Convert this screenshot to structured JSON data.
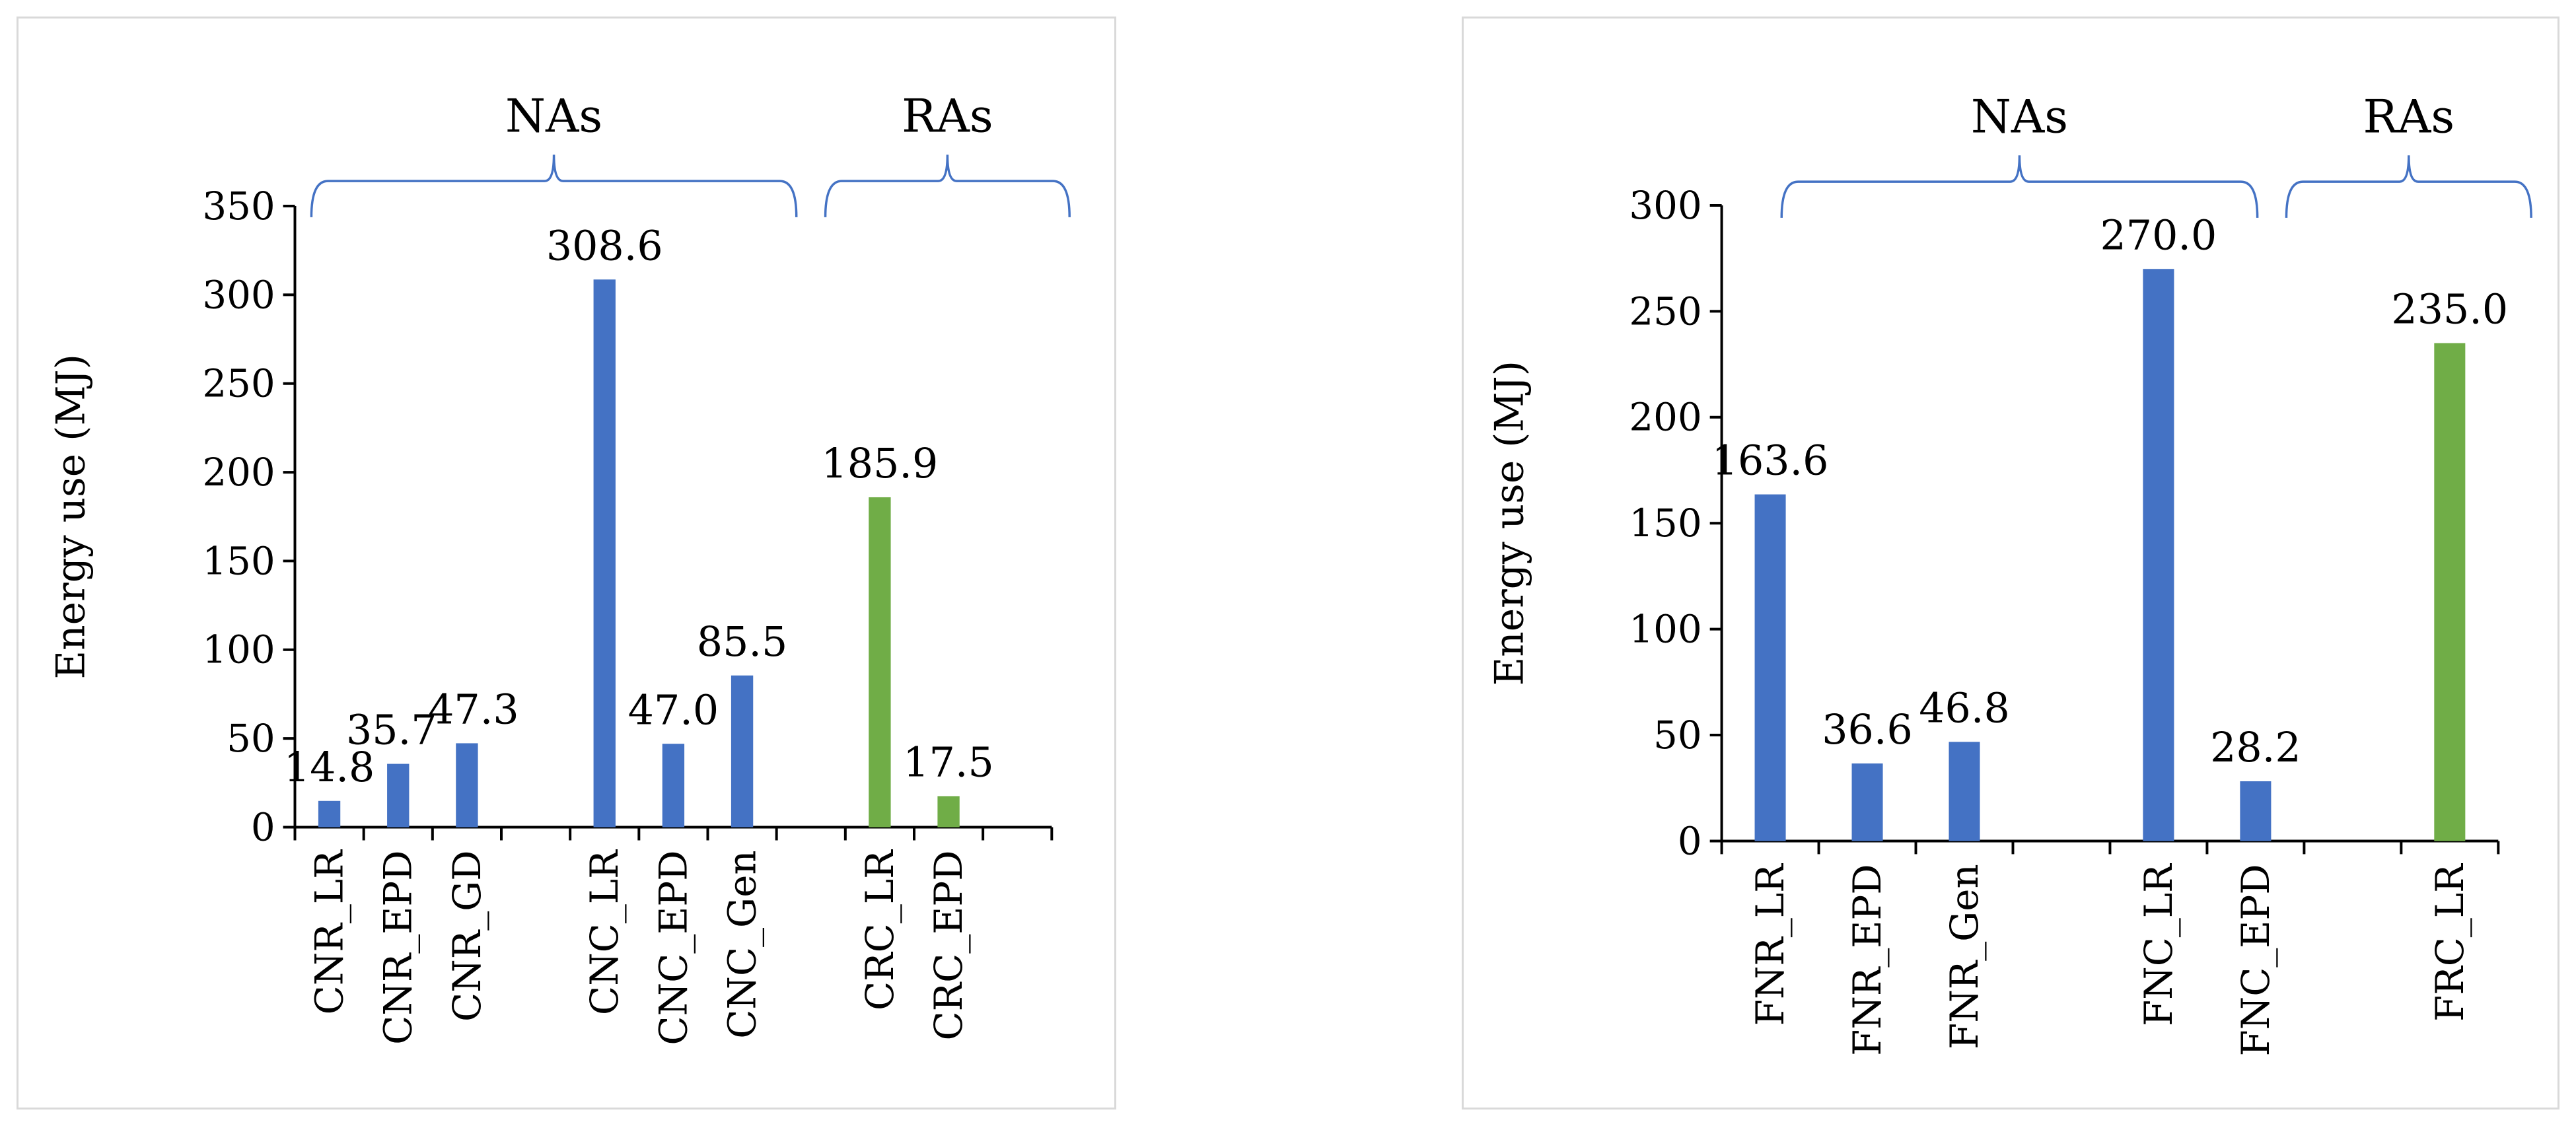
{
  "chart_data": [
    {
      "type": "bar",
      "ylabel": "Energy use (MJ)",
      "ylim": [
        0,
        350
      ],
      "yticks": [
        0,
        50,
        100,
        150,
        200,
        250,
        300,
        350
      ],
      "categories": [
        "CNR_LR",
        "CNR_EPD",
        "CNR_GD",
        "",
        "CNC_LR",
        "CNC_EPD",
        "CNC_Gen",
        "",
        "CRC_LR",
        "CRC_EPD",
        ""
      ],
      "values": [
        14.8,
        35.7,
        47.3,
        null,
        308.6,
        47.0,
        85.5,
        null,
        185.9,
        17.5,
        null
      ],
      "value_labels": [
        "14.8",
        "35.7",
        "47.3",
        "",
        "308.6",
        "47.0",
        "85.5",
        "",
        "185.9",
        "17.5",
        ""
      ],
      "groups": [
        {
          "label": "NAs",
          "categories": [
            "CNR_LR",
            "CNR_EPD",
            "CNR_GD",
            "CNC_LR",
            "CNC_EPD",
            "CNC_Gen"
          ],
          "color": "#4472c4"
        },
        {
          "label": "RAs",
          "categories": [
            "CRC_LR",
            "CRC_EPD"
          ],
          "color": "#70ad47"
        }
      ],
      "bar_colors": [
        "#4472c4",
        "#4472c4",
        "#4472c4",
        "",
        "#4472c4",
        "#4472c4",
        "#4472c4",
        "",
        "#70ad47",
        "#70ad47",
        ""
      ],
      "grid": false
    },
    {
      "type": "bar",
      "ylabel": "Energy use (MJ)",
      "ylim": [
        0,
        300
      ],
      "yticks": [
        0,
        50,
        100,
        150,
        200,
        250,
        300
      ],
      "categories": [
        "FNR_LR",
        "FNR_EPD",
        "FNR_Gen",
        "",
        "FNC_LR",
        "FNC_EPD",
        "",
        "FRC_LR"
      ],
      "values": [
        163.6,
        36.6,
        46.8,
        null,
        270.0,
        28.2,
        null,
        235.0
      ],
      "value_labels": [
        "163.6",
        "36.6",
        "46.8",
        "",
        "270.0",
        "28.2",
        "",
        "235.0"
      ],
      "groups": [
        {
          "label": "NAs",
          "categories": [
            "FNR_LR",
            "FNR_EPD",
            "FNR_Gen",
            "FNC_LR",
            "FNC_EPD"
          ],
          "color": "#4472c4"
        },
        {
          "label": "RAs",
          "categories": [
            "FRC_LR"
          ],
          "color": "#70ad47"
        }
      ],
      "bar_colors": [
        "#4472c4",
        "#4472c4",
        "#4472c4",
        "",
        "#4472c4",
        "#4472c4",
        "",
        "#70ad47"
      ],
      "grid": false
    }
  ],
  "colors": {
    "bracket": "#4472c4",
    "axis": "#000000",
    "na": "#4472c4",
    "ra": "#70ad47"
  }
}
